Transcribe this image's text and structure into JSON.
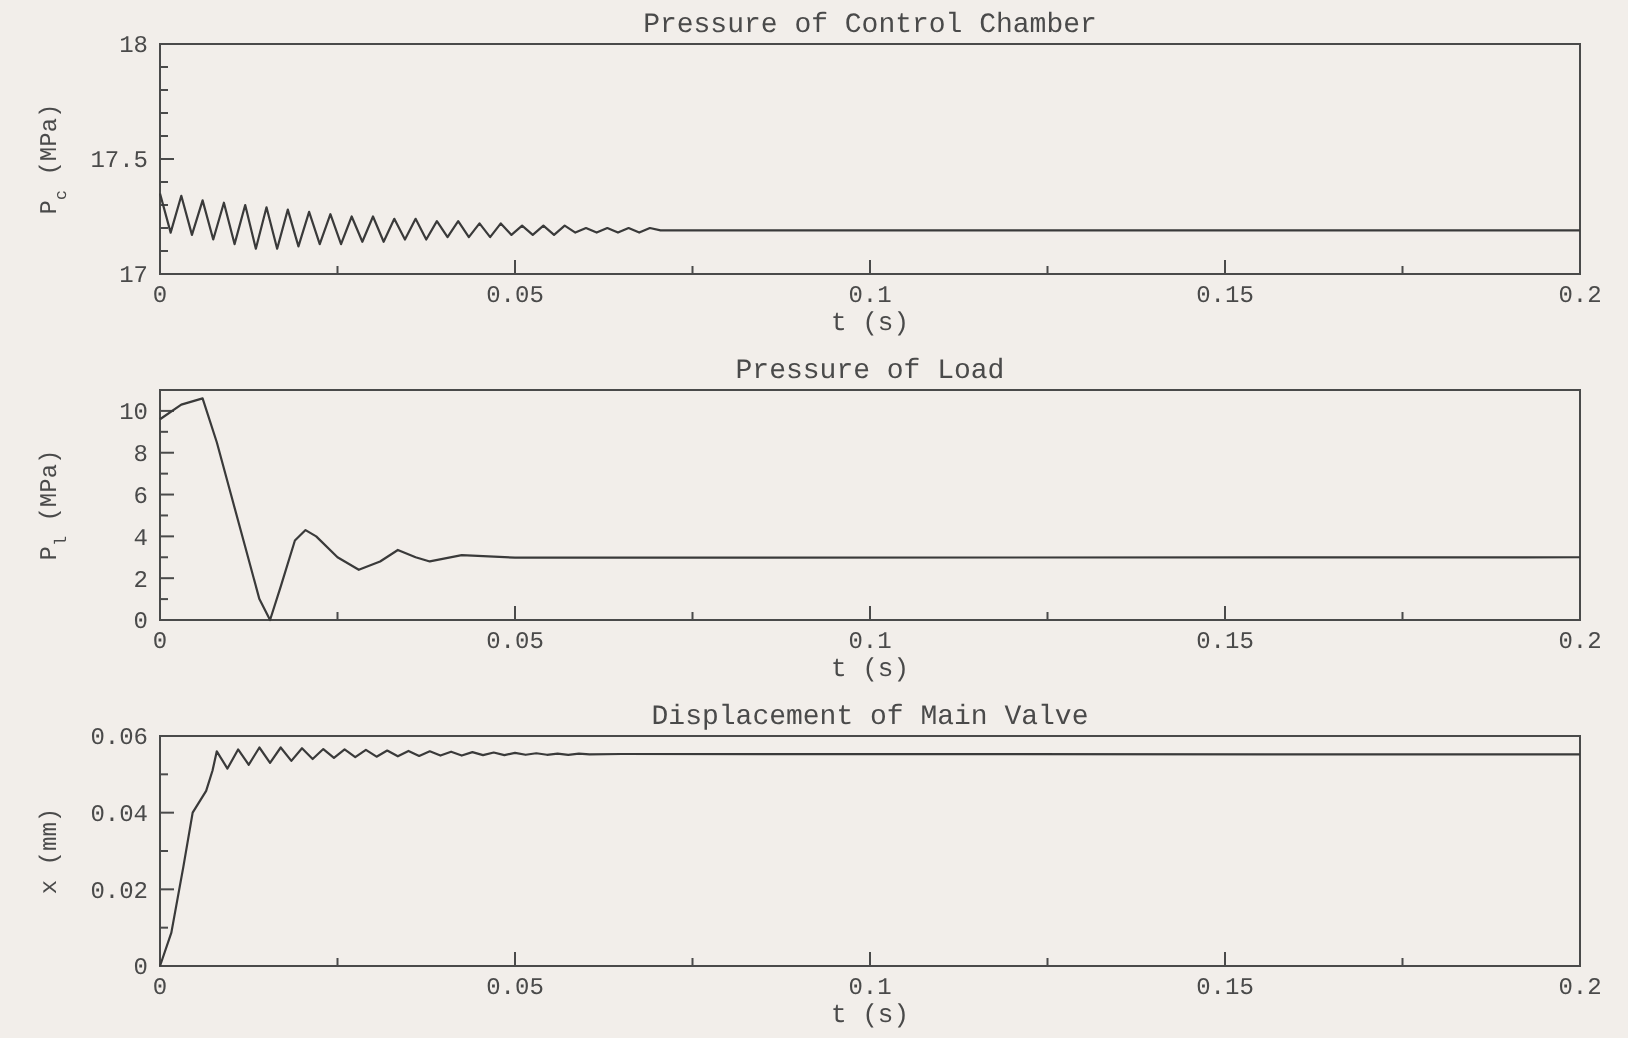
{
  "chart_data": [
    {
      "type": "line",
      "title": "Pressure of Control Chamber",
      "xlabel": "t (s)",
      "ylabel": "P$_{c}$ (MPa)",
      "xlim": [
        0,
        0.2
      ],
      "ylim": [
        17,
        18
      ],
      "xticks": [
        0,
        {
          "value": 0.025,
          "label": null
        },
        0.05,
        {
          "value": 0.075,
          "label": null
        },
        0.1,
        {
          "value": 0.125,
          "label": null
        },
        0.15,
        {
          "value": 0.175,
          "label": null
        },
        0.2
      ],
      "yticks": [
        17,
        {
          "value": 17.1,
          "label": null
        },
        {
          "value": 17.2,
          "label": null
        },
        {
          "value": 17.3,
          "label": null
        },
        {
          "value": 17.4,
          "label": null
        },
        17.5,
        {
          "value": 17.6,
          "label": null
        },
        {
          "value": 17.7,
          "label": null
        },
        {
          "value": 17.8,
          "label": null
        },
        {
          "value": 17.9,
          "label": null
        },
        18
      ],
      "x": [
        0,
        0.0015,
        0.003,
        0.0045,
        0.006,
        0.0075,
        0.009,
        0.0105,
        0.012,
        0.0135,
        0.015,
        0.0165,
        0.018,
        0.0195,
        0.021,
        0.0225,
        0.024,
        0.0255,
        0.027,
        0.0285,
        0.03,
        0.0315,
        0.033,
        0.0345,
        0.036,
        0.0375,
        0.039,
        0.0405,
        0.042,
        0.0435,
        0.045,
        0.0465,
        0.048,
        0.0495,
        0.051,
        0.0525,
        0.054,
        0.0555,
        0.057,
        0.0585,
        0.06,
        0.0615,
        0.063,
        0.0645,
        0.066,
        0.0675,
        0.069,
        0.0705,
        0.075,
        0.2
      ],
      "series": [
        {
          "color": "#3a3a3a",
          "values": [
            17.35,
            17.18,
            17.34,
            17.17,
            17.32,
            17.15,
            17.31,
            17.13,
            17.3,
            17.11,
            17.29,
            17.11,
            17.28,
            17.12,
            17.27,
            17.13,
            17.26,
            17.13,
            17.25,
            17.14,
            17.25,
            17.14,
            17.24,
            17.15,
            17.24,
            17.15,
            17.23,
            17.16,
            17.23,
            17.16,
            17.22,
            17.16,
            17.22,
            17.17,
            17.21,
            17.17,
            17.21,
            17.17,
            17.21,
            17.18,
            17.2,
            17.18,
            17.2,
            17.18,
            17.2,
            17.18,
            17.2,
            17.19,
            17.19,
            17.19
          ]
        }
      ]
    },
    {
      "type": "line",
      "title": "Pressure of Load",
      "xlabel": "t (s)",
      "ylabel": "P$_{l}$ (MPa)",
      "xlim": [
        0,
        0.2
      ],
      "ylim": [
        0,
        11
      ],
      "xticks": [
        0,
        {
          "value": 0.025,
          "label": null
        },
        0.05,
        {
          "value": 0.075,
          "label": null
        },
        0.1,
        {
          "value": 0.125,
          "label": null
        },
        0.15,
        {
          "value": 0.175,
          "label": null
        },
        0.2
      ],
      "yticks": [
        0,
        {
          "value": 1,
          "label": null
        },
        2,
        {
          "value": 3,
          "label": null
        },
        4,
        {
          "value": 5,
          "label": null
        },
        6,
        {
          "value": 7,
          "label": null
        },
        8,
        {
          "value": 9,
          "label": null
        },
        10
      ],
      "x": [
        0,
        0.003,
        0.006,
        0.008,
        0.01,
        0.012,
        0.014,
        0.0155,
        0.017,
        0.019,
        0.0205,
        0.022,
        0.025,
        0.028,
        0.031,
        0.0335,
        0.036,
        0.038,
        0.0425,
        0.05,
        0.2
      ],
      "series": [
        {
          "color": "#3a3a3a",
          "values": [
            9.6,
            10.3,
            10.6,
            8.5,
            6,
            3.5,
            1,
            0,
            1.6,
            3.8,
            4.3,
            4,
            3,
            2.4,
            2.8,
            3.35,
            3,
            2.8,
            3.1,
            2.98,
            3
          ]
        }
      ]
    },
    {
      "type": "line",
      "title": "Displacement of Main Valve",
      "xlabel": "t (s)",
      "ylabel": "x (mm)",
      "xlim": [
        0,
        0.2
      ],
      "ylim": [
        0,
        0.06
      ],
      "xticks": [
        0,
        {
          "value": 0.025,
          "label": null
        },
        0.05,
        {
          "value": 0.075,
          "label": null
        },
        0.1,
        {
          "value": 0.125,
          "label": null
        },
        0.15,
        {
          "value": 0.175,
          "label": null
        },
        0.2
      ],
      "yticks": [
        0,
        {
          "value": 0.01,
          "label": null
        },
        0.02,
        {
          "value": 0.03,
          "label": null
        },
        0.04,
        {
          "value": 0.05,
          "label": null
        },
        0.06
      ],
      "x": [
        0,
        0.0016,
        0.0033,
        0.0046,
        0.0065,
        0.0074,
        0.008,
        0.0095,
        0.011,
        0.0125,
        0.014,
        0.0155,
        0.017,
        0.0185,
        0.02,
        0.0215,
        0.023,
        0.0245,
        0.026,
        0.0275,
        0.029,
        0.0305,
        0.032,
        0.0335,
        0.035,
        0.0365,
        0.038,
        0.0395,
        0.041,
        0.0425,
        0.044,
        0.0455,
        0.047,
        0.0485,
        0.05,
        0.0515,
        0.053,
        0.0545,
        0.056,
        0.0575,
        0.059,
        0.0605,
        0.065,
        0.2
      ],
      "series": [
        {
          "color": "#3a3a3a",
          "values": [
            0,
            0.0087,
            0.026,
            0.04,
            0.0457,
            0.051,
            0.056,
            0.0515,
            0.0565,
            0.0525,
            0.057,
            0.053,
            0.057,
            0.0535,
            0.0568,
            0.054,
            0.0566,
            0.0543,
            0.0565,
            0.0545,
            0.0564,
            0.0546,
            0.0562,
            0.0547,
            0.0561,
            0.0548,
            0.056,
            0.0549,
            0.0559,
            0.0549,
            0.0558,
            0.055,
            0.0557,
            0.055,
            0.0556,
            0.0551,
            0.0555,
            0.0551,
            0.0554,
            0.0551,
            0.0554,
            0.0552,
            0.0553,
            0.0552
          ]
        }
      ]
    }
  ]
}
